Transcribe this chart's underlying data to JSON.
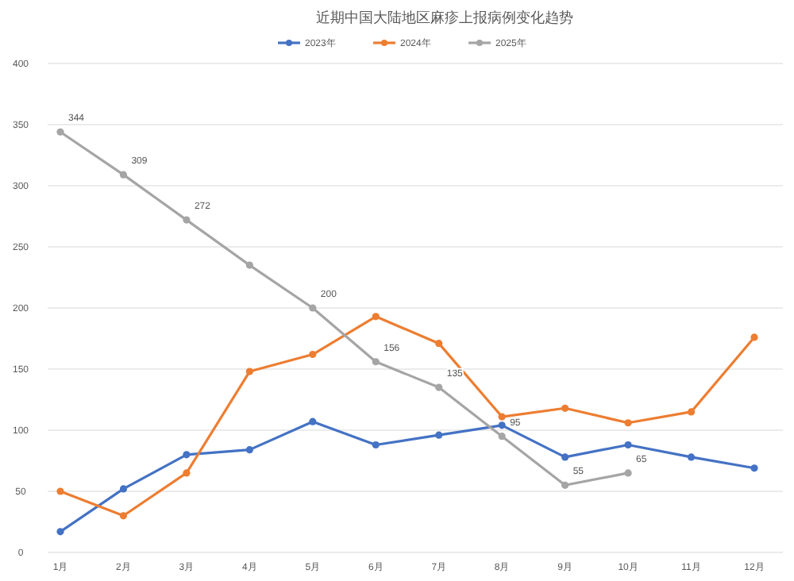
{
  "chart_data": {
    "type": "line",
    "title": "近期中国大陆地区麻疹上报病例变化趋势",
    "categories": [
      "1月",
      "2月",
      "3月",
      "4月",
      "5月",
      "6月",
      "7月",
      "8月",
      "9月",
      "10月",
      "11月",
      "12月"
    ],
    "series": [
      {
        "name": "2023年",
        "color": "#4472c4",
        "values": [
          17,
          52,
          80,
          84,
          107,
          88,
          96,
          104,
          78,
          88,
          78,
          69
        ]
      },
      {
        "name": "2024年",
        "color": "#ed7d31",
        "values": [
          50,
          30,
          65,
          148,
          162,
          193,
          171,
          111,
          118,
          106,
          115,
          176
        ]
      },
      {
        "name": "2025年",
        "color": "#a5a5a5",
        "values": [
          344,
          309,
          272,
          235,
          200,
          156,
          135,
          95,
          55,
          65,
          null,
          null
        ],
        "value_labels": [
          "344",
          "309",
          "272",
          null,
          "200",
          "156",
          "135",
          "95",
          "55",
          "65",
          null,
          null
        ]
      }
    ],
    "ylim": [
      0,
      400
    ],
    "yticks": [
      0,
      50,
      100,
      150,
      200,
      250,
      300,
      350,
      400
    ],
    "grid": "y",
    "legend": "top",
    "marker": "circle",
    "line_style": "solid"
  }
}
